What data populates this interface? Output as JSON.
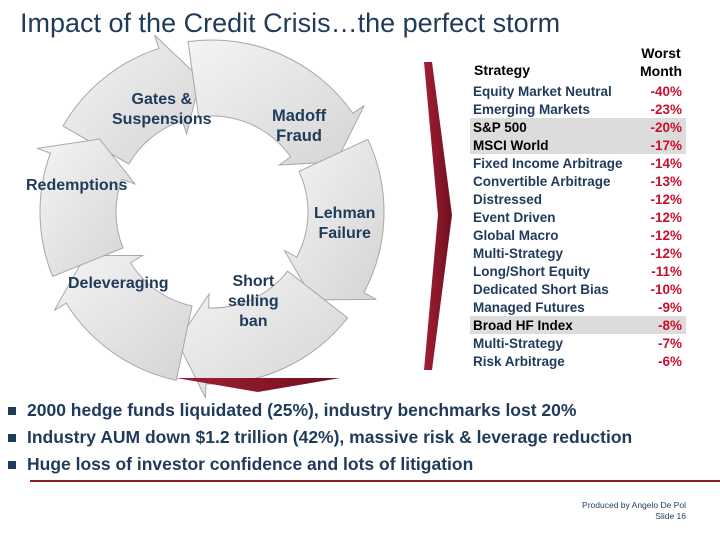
{
  "title": "Impact of the Credit Crisis…the perfect storm",
  "cycle": {
    "labels": {
      "gates": [
        "Gates &",
        "Suspensions"
      ],
      "madoff": [
        "Madoff",
        "Fraud"
      ],
      "redemptions": [
        "Redemptions"
      ],
      "lehman": [
        "Lehman",
        "Failure"
      ],
      "deleveraging": [
        "Deleveraging"
      ],
      "short": [
        "Short",
        "selling",
        "ban"
      ]
    }
  },
  "table": {
    "col_strategy": "Strategy",
    "col_worst": [
      "Worst",
      "Month"
    ],
    "rows": [
      {
        "name": "Equity Market Neutral",
        "value": "-40%",
        "highlight": false
      },
      {
        "name": "Emerging Markets",
        "value": "-23%",
        "highlight": false
      },
      {
        "name": "S&P 500",
        "value": "-20%",
        "highlight": true
      },
      {
        "name": "MSCI World",
        "value": "-17%",
        "highlight": true
      },
      {
        "name": "Fixed Income Arbitrage",
        "value": "-14%",
        "highlight": false
      },
      {
        "name": "Convertible Arbitrage",
        "value": "-13%",
        "highlight": false
      },
      {
        "name": "Distressed",
        "value": "-12%",
        "highlight": false
      },
      {
        "name": "Event Driven",
        "value": "-12%",
        "highlight": false
      },
      {
        "name": "Global Macro",
        "value": "-12%",
        "highlight": false
      },
      {
        "name": "Multi-Strategy",
        "value": "-12%",
        "highlight": false
      },
      {
        "name": "Long/Short Equity",
        "value": "-11%",
        "highlight": false
      },
      {
        "name": "Dedicated Short Bias",
        "value": "-10%",
        "highlight": false
      },
      {
        "name": "Managed Futures",
        "value": "-9%",
        "highlight": false
      },
      {
        "name": "Broad HF Index",
        "value": "-8%",
        "highlight": true
      },
      {
        "name": "Multi-Strategy",
        "value": "-7%",
        "highlight": false
      },
      {
        "name": "Risk Arbitrage",
        "value": "-6%",
        "highlight": false
      }
    ]
  },
  "bullets": [
    "2000 hedge funds liquidated (25%), industry benchmarks lost 20%",
    "Industry AUM down $1.2 trillion (42%), massive risk & leverage reduction",
    "Huge loss of investor confidence and lots of litigation"
  ],
  "footer": {
    "line1": "Produced by Angelo De Pol",
    "line2": "Slide 16"
  },
  "colors": {
    "title": "#1f3a5a",
    "accent": "#8b1a2b",
    "value_red": "#c8102e",
    "arrow_fill": "#e6e6e6",
    "highlight_row": "#dcdcdc"
  }
}
